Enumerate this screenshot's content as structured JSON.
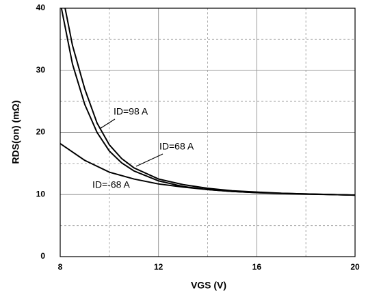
{
  "chart_data": {
    "type": "line",
    "x_label": "VGS (V)",
    "y_label": "RDS(on) (mΩ)",
    "xlim": [
      8,
      20
    ],
    "xticks": [
      8,
      12,
      16,
      20
    ],
    "ylim": [
      0,
      40
    ],
    "yticks": [
      0,
      10,
      20,
      30,
      40
    ],
    "grid": true,
    "series": [
      {
        "name": "ID=98 A",
        "color": "#000000",
        "x": [
          8.2,
          8.5,
          9,
          9.5,
          10,
          10.5,
          11,
          12,
          13,
          14,
          15,
          16,
          17,
          18,
          19,
          20
        ],
        "values": [
          40,
          34,
          27,
          21.5,
          18,
          15.8,
          14.3,
          12.5,
          11.6,
          11,
          10.6,
          10.4,
          10.2,
          10.1,
          10,
          9.9
        ]
      },
      {
        "name": "ID=68 A",
        "color": "#000000",
        "x": [
          8.05,
          8.5,
          9,
          9.5,
          10,
          10.5,
          11,
          12,
          13,
          14,
          15,
          16,
          17,
          18,
          19,
          20
        ],
        "values": [
          40,
          31,
          24.5,
          20,
          17,
          15.1,
          13.8,
          12.2,
          11.3,
          10.8,
          10.5,
          10.3,
          10.15,
          10.05,
          10,
          9.9
        ]
      },
      {
        "name": "ID=-68 A",
        "color": "#000000",
        "x": [
          8,
          9,
          10,
          11,
          12,
          13,
          14,
          15,
          16,
          18,
          20
        ],
        "values": [
          18.2,
          15.5,
          13.6,
          12.5,
          11.7,
          11.2,
          10.8,
          10.5,
          10.3,
          10.1,
          9.9
        ]
      }
    ]
  }
}
